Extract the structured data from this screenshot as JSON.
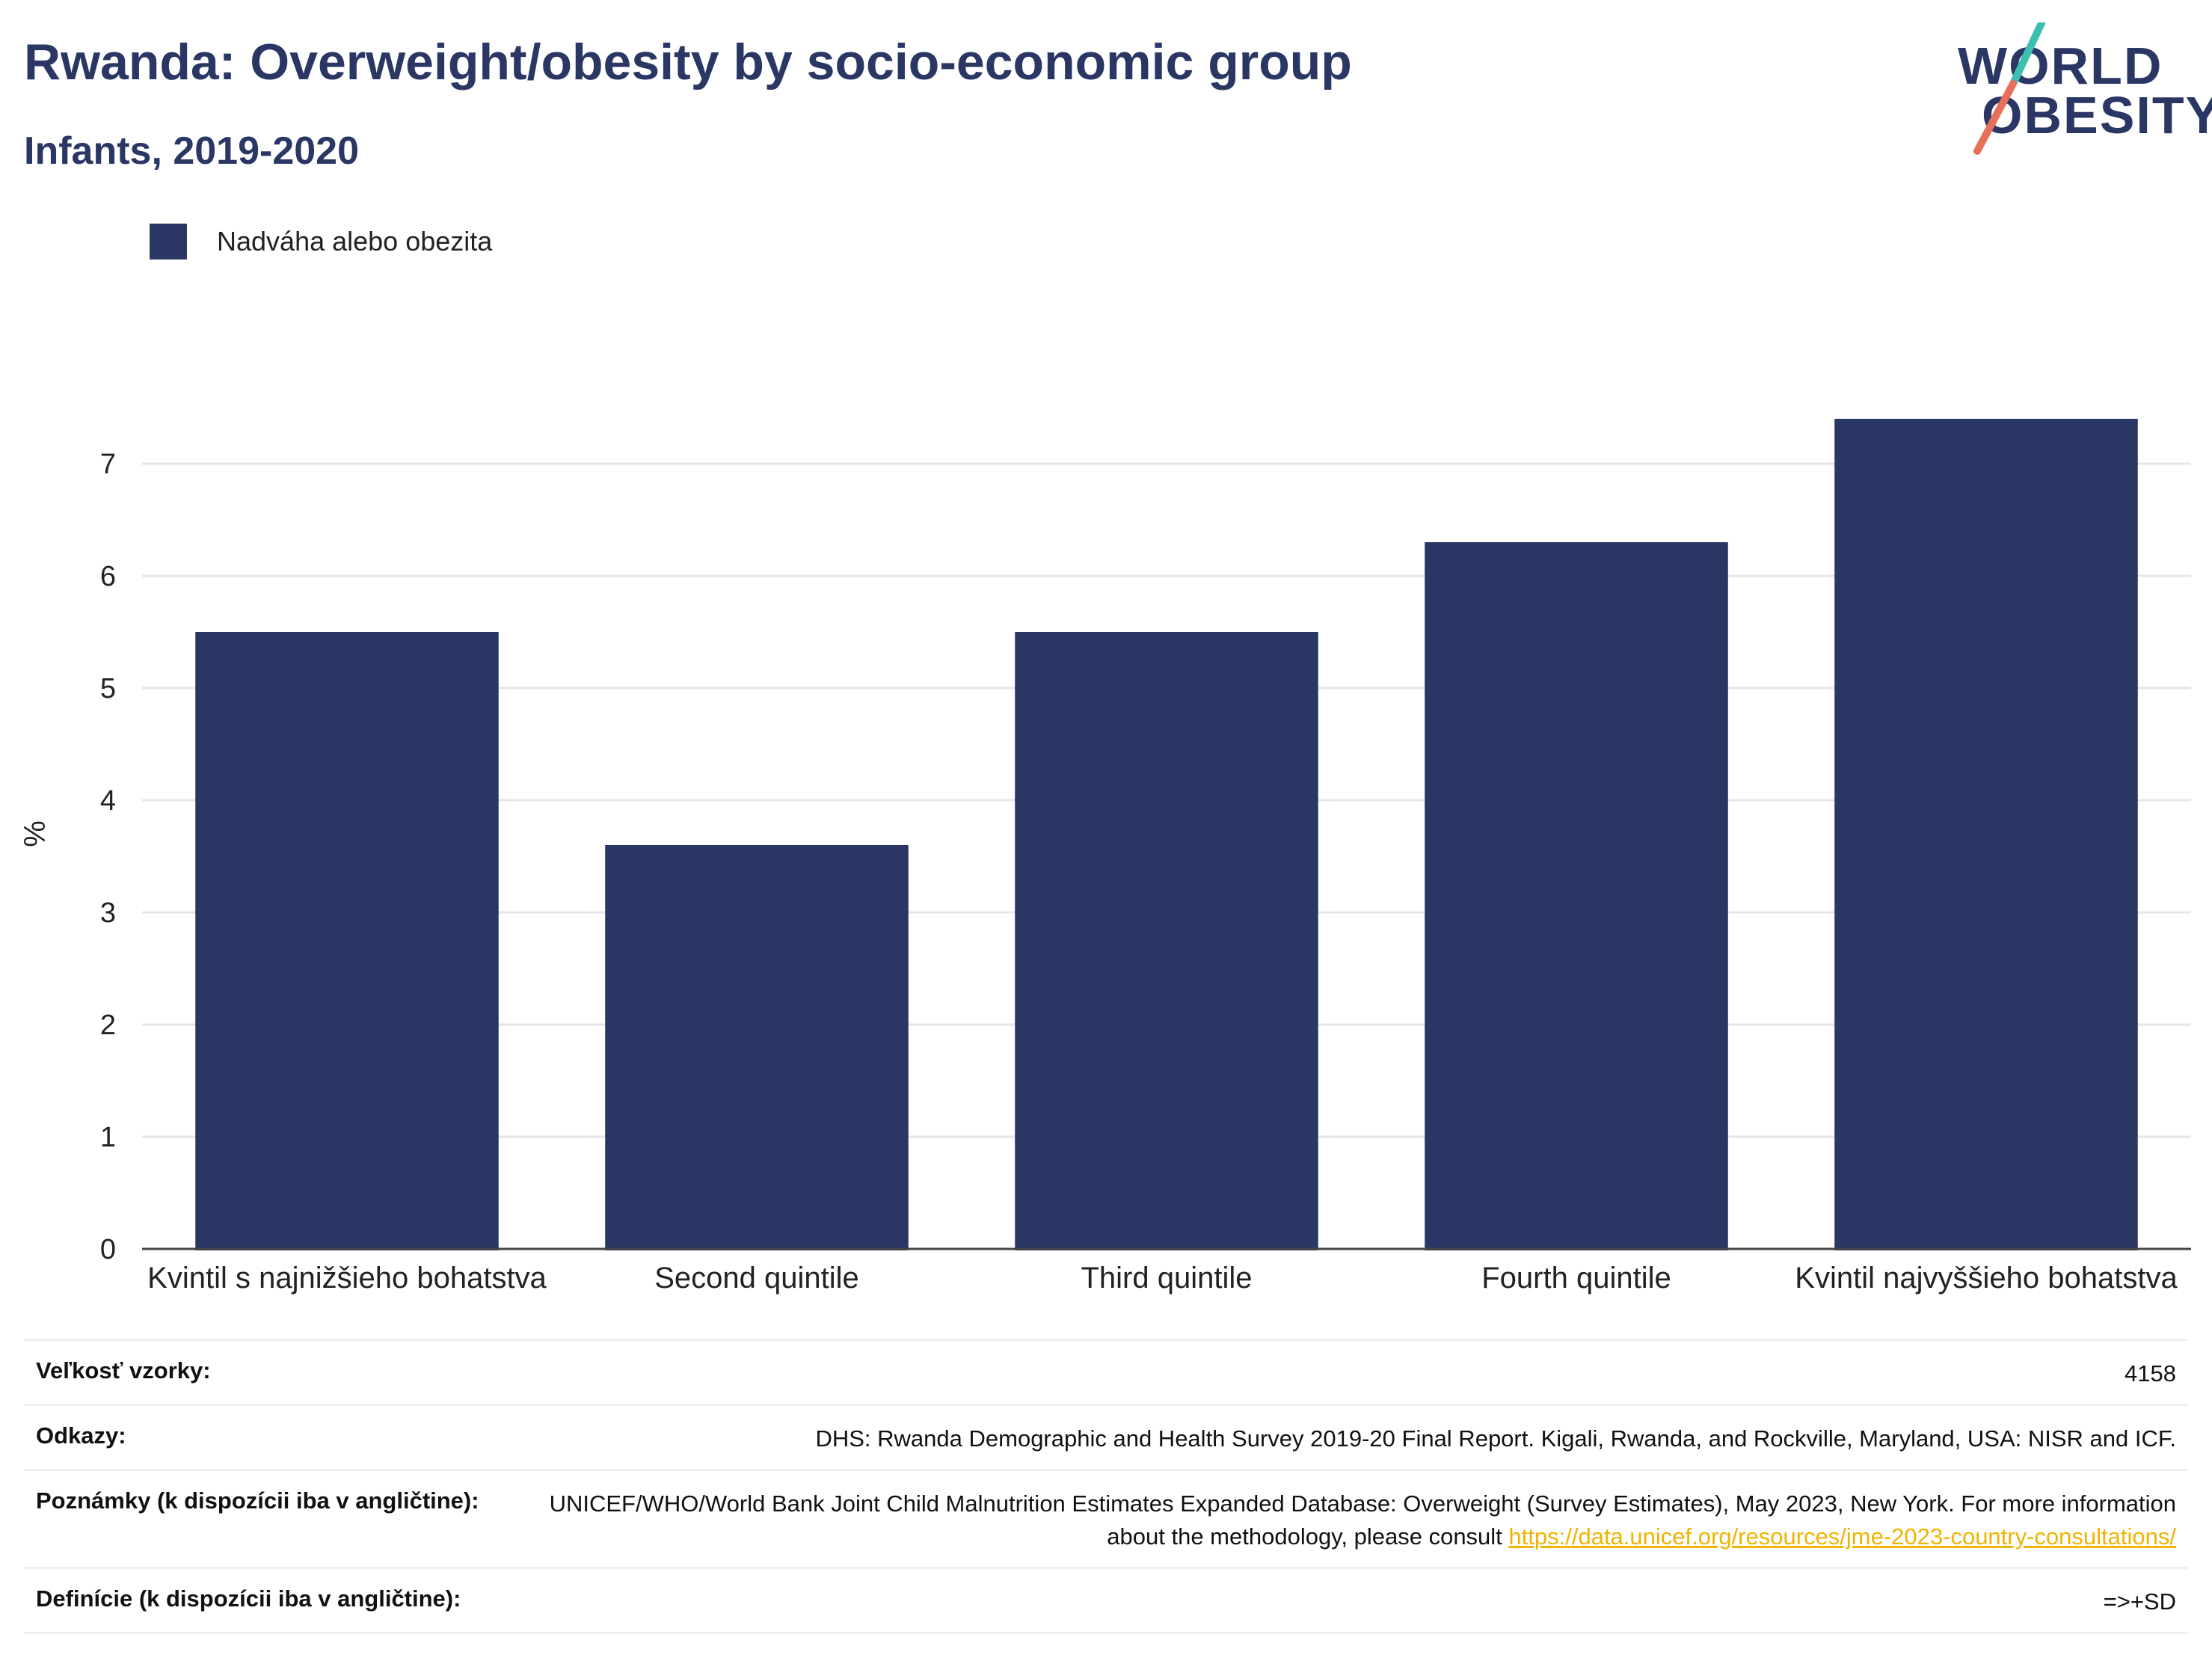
{
  "header": {
    "title": "Rwanda: Overweight/obesity by socio-economic group",
    "subtitle": "Infants, 2019-2020"
  },
  "logo": {
    "line1": "WORLD",
    "line2": "OBESITY"
  },
  "colors": {
    "bar": "#2a3663",
    "title": "#2a3663",
    "grid": "#e6e6e6",
    "link": "#f0b400",
    "logo_teal": "#3dbfb0",
    "logo_coral": "#e8705a"
  },
  "chart_data": {
    "type": "bar",
    "categories": [
      "Kvintil s najnižšieho bohatstva",
      "Second quintile",
      "Third quintile",
      "Fourth quintile",
      "Kvintil najvyššieho bohatstva"
    ],
    "series": [
      {
        "name": "Nadváha alebo obezita",
        "values": [
          5.5,
          3.6,
          5.5,
          6.3,
          7.4
        ]
      }
    ],
    "ylabel": "%",
    "ylim": [
      0,
      7.4
    ],
    "yticks": [
      0,
      1,
      2,
      3,
      4,
      5,
      6,
      7
    ],
    "grid": true,
    "legend_position": "top-left"
  },
  "footer": {
    "rows": [
      {
        "key": "Veľkosť vzorky:",
        "value": "4158"
      },
      {
        "key": "Odkazy:",
        "value": "DHS: Rwanda Demographic and Health Survey 2019-20 Final Report. Kigali, Rwanda, and Rockville, Maryland, USA: NISR and ICF."
      },
      {
        "key": "Poznámky (k dispozícii iba v angličtine):",
        "value": "UNICEF/WHO/World Bank Joint Child Malnutrition Estimates Expanded Database: Overweight (Survey Estimates), May 2023, New York. For more information about the methodology, please consult ",
        "link": "https://data.unicef.org/resources/jme-2023-country-consultations/"
      },
      {
        "key": "Definície (k dispozícii iba v angličtine):",
        "value": "=>+SD"
      }
    ]
  }
}
